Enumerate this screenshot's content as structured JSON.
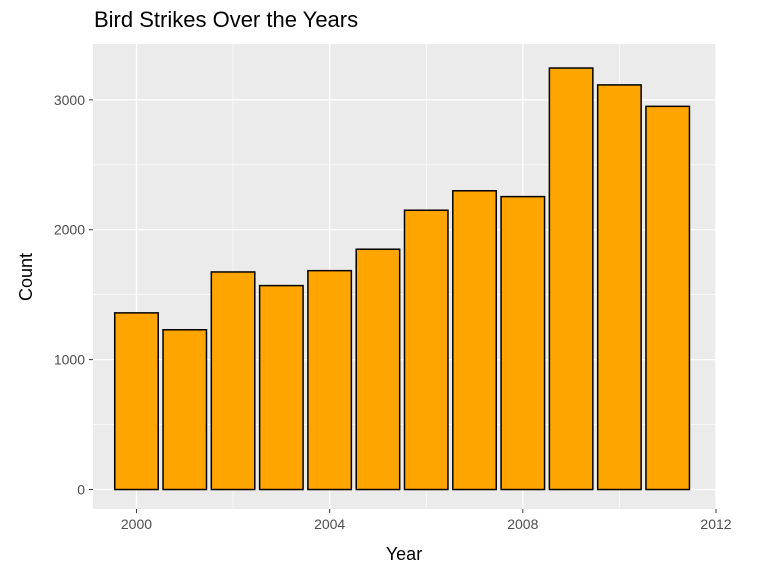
{
  "chart_data": {
    "type": "bar",
    "title": "Bird Strikes Over the Years",
    "xlabel": "Year",
    "ylabel": "Count",
    "categories": [
      2000,
      2001,
      2002,
      2003,
      2004,
      2005,
      2006,
      2007,
      2008,
      2009,
      2010,
      2011
    ],
    "values": [
      1360,
      1230,
      1675,
      1570,
      1685,
      1850,
      2150,
      2300,
      2255,
      3245,
      3115,
      2950
    ],
    "xlim": [
      1999.1,
      2012.0
    ],
    "ylim": [
      -150,
      3430
    ],
    "x_ticks": [
      2000,
      2004,
      2008,
      2012
    ],
    "x_tick_labels": [
      "2000",
      "2004",
      "2008",
      "2012"
    ],
    "y_ticks": [
      0,
      1000,
      2000,
      3000
    ],
    "y_tick_labels": [
      "0",
      "1000",
      "2000",
      "3000"
    ],
    "colors": {
      "bar_fill": "#FFA500",
      "bar_stroke": "#000000",
      "panel_bg": "#EBEBEB",
      "grid_major": "#FFFFFF",
      "tick_color": "#333333"
    },
    "grid": true,
    "legend": "none"
  }
}
